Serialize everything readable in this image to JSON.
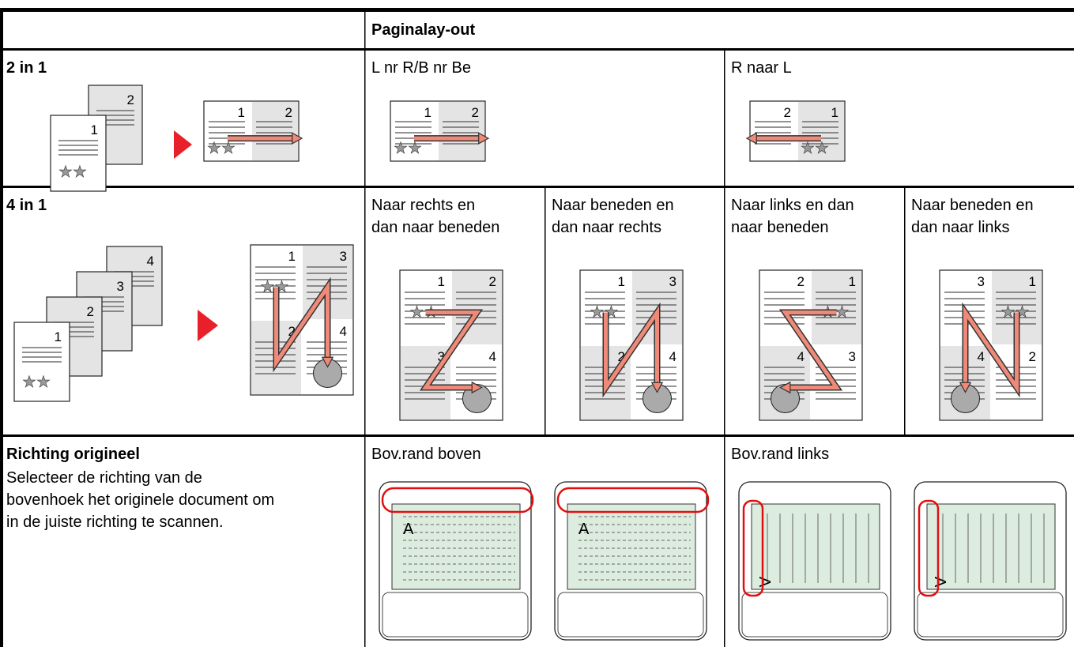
{
  "header": {
    "title": "Paginalay-out"
  },
  "rows": [
    {
      "label": "2 in 1",
      "source_pages": [
        "2",
        "1"
      ],
      "result_pages": [
        "1",
        "2"
      ],
      "options": [
        {
          "label": [
            "L nr R/B nr Be"
          ],
          "pages": [
            "1",
            "2"
          ]
        },
        {
          "label": [
            "R naar L"
          ],
          "pages": [
            "2",
            "1"
          ]
        }
      ]
    },
    {
      "label": "4 in 1",
      "source_pages": [
        "4",
        "3",
        "2",
        "1"
      ],
      "result_pages": [
        "1",
        "3",
        "2",
        "4"
      ],
      "options": [
        {
          "label": [
            "Naar rechts en",
            "dan naar beneden"
          ],
          "pages": [
            "1",
            "2",
            "3",
            "4"
          ]
        },
        {
          "label": [
            "Naar beneden en",
            "dan naar rechts"
          ],
          "pages": [
            "1",
            "3",
            "2",
            "4"
          ]
        },
        {
          "label": [
            "Naar links en dan",
            "naar beneden"
          ],
          "pages": [
            "2",
            "1",
            "4",
            "3"
          ]
        },
        {
          "label": [
            "Naar beneden en",
            "dan naar links"
          ],
          "pages": [
            "3",
            "1",
            "4",
            "2"
          ]
        }
      ]
    },
    {
      "label": "Richting origineel",
      "description": [
        "Selecteer de richting van de",
        "bovenhoek het originele document om",
        "in de juiste richting te scannen."
      ],
      "options": [
        {
          "label": [
            "Bov.rand boven"
          ],
          "mark": "A"
        },
        {
          "label": [
            "Bov.rand links"
          ],
          "mark": "A"
        }
      ]
    }
  ]
}
